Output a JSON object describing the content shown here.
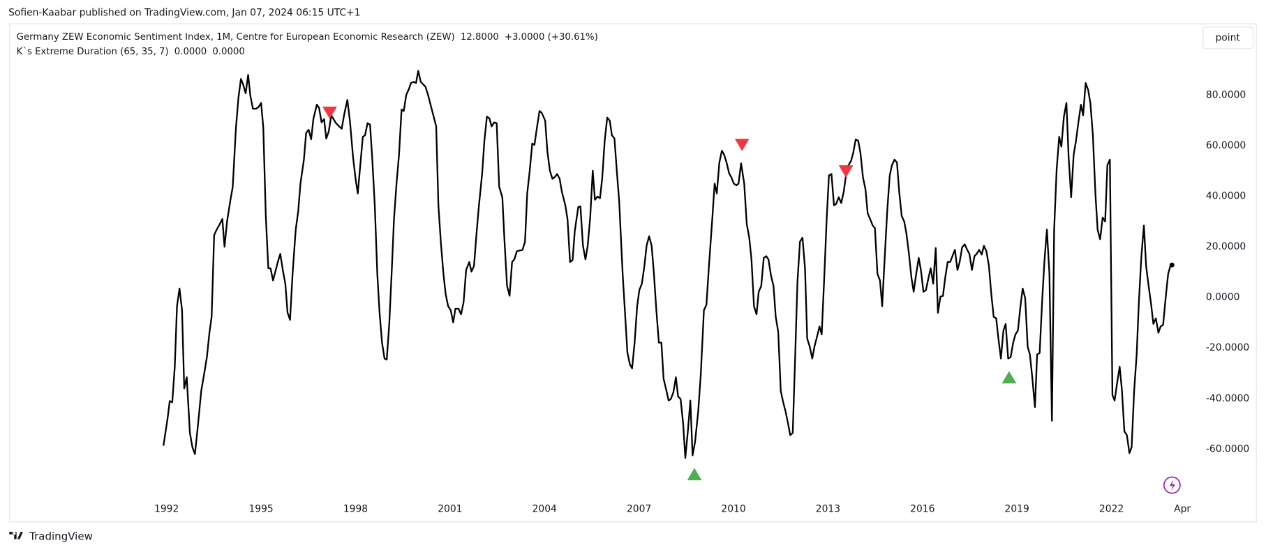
{
  "header": "Sofien-Kaabar published on TradingView.com, Jan 07, 2024 06:15 UTC+1",
  "footer": "TradingView",
  "button": "point",
  "chart_data": {
    "type": "line",
    "last_value": {
      "value": 12.8,
      "label": "12.8000"
    },
    "change": "+3.0000 (+30.61%)",
    "indicator": {
      "name": "K`s Extreme Duration (65, 35, 7)",
      "values": [
        {
          "value": 0,
          "label": "0.0000",
          "color": "#4caf50"
        },
        {
          "value": 0,
          "label": "0.0000",
          "color": "#f23645"
        }
      ]
    },
    "xlim": [
      1987.03,
      2024.64
    ],
    "ylim": [
      -78.4,
      108.05
    ],
    "xticks": [
      1992,
      1995,
      1998,
      2001,
      2004,
      2007,
      2010,
      2013,
      2016,
      2019,
      2022,
      {
        "value": 2024.25,
        "label": "Apr"
      }
    ],
    "yticks": [
      {
        "value": 80,
        "label": "80.0000"
      },
      {
        "value": 60,
        "label": "60.0000"
      },
      {
        "value": 40,
        "label": "40.0000"
      },
      {
        "value": 20,
        "label": "20.0000"
      },
      {
        "value": 0,
        "label": "0.0000"
      },
      {
        "value": -20,
        "label": "-20.0000"
      },
      {
        "value": -40,
        "label": "-40.0000"
      },
      {
        "value": -60,
        "label": "-60.0000"
      }
    ],
    "x": [
      1991.9,
      1992.03,
      1992.1,
      1992.18,
      1992.26,
      1992.33,
      1992.41,
      1992.49,
      1992.56,
      1992.64,
      1992.74,
      1992.82,
      1992.9,
      1993.0,
      1993.1,
      1993.2,
      1993.28,
      1993.36,
      1993.43,
      1993.51,
      1993.59,
      1993.69,
      1993.77,
      1993.84,
      1993.92,
      1994.02,
      1994.1,
      1994.2,
      1994.28,
      1994.36,
      1994.43,
      1994.51,
      1994.59,
      1994.66,
      1994.74,
      1994.84,
      1994.92,
      1995.0,
      1995.07,
      1995.15,
      1995.23,
      1995.3,
      1995.38,
      1995.46,
      1995.54,
      1995.61,
      1995.69,
      1995.77,
      1995.84,
      1995.92,
      1996.0,
      1996.1,
      1996.18,
      1996.25,
      1996.36,
      1996.43,
      1996.51,
      1996.59,
      1996.66,
      1996.77,
      1996.84,
      1996.92,
      1997.0,
      1997.07,
      1997.15,
      1997.23,
      1997.3,
      1997.38,
      1997.48,
      1997.56,
      1997.64,
      1997.74,
      1997.82,
      1997.92,
      1998.0,
      1998.07,
      1998.15,
      1998.23,
      1998.3,
      1998.38,
      1998.46,
      1998.53,
      1998.61,
      1998.69,
      1998.76,
      1998.84,
      1998.92,
      1998.99,
      1999.07,
      1999.15,
      1999.22,
      1999.3,
      1999.38,
      1999.46,
      1999.53,
      1999.61,
      1999.69,
      1999.76,
      1999.84,
      1999.92,
      1999.99,
      2000.07,
      2000.15,
      2000.22,
      2000.3,
      2000.4,
      2000.48,
      2000.56,
      2000.63,
      2000.71,
      2000.79,
      2000.86,
      2000.94,
      2001.02,
      2001.1,
      2001.17,
      2001.27,
      2001.35,
      2001.43,
      2001.51,
      2001.61,
      2001.68,
      2001.76,
      2001.84,
      2001.91,
      2002.02,
      2002.09,
      2002.17,
      2002.25,
      2002.32,
      2002.4,
      2002.48,
      2002.56,
      2002.66,
      2002.73,
      2002.81,
      2002.89,
      2002.97,
      2003.04,
      2003.12,
      2003.2,
      2003.3,
      2003.38,
      2003.45,
      2003.53,
      2003.61,
      2003.68,
      2003.76,
      2003.84,
      2003.91,
      2004.02,
      2004.09,
      2004.17,
      2004.25,
      2004.32,
      2004.4,
      2004.48,
      2004.55,
      2004.66,
      2004.73,
      2004.81,
      2004.89,
      2004.96,
      2005.07,
      2005.14,
      2005.22,
      2005.3,
      2005.37,
      2005.45,
      2005.53,
      2005.6,
      2005.68,
      2005.76,
      2005.83,
      2005.91,
      2005.99,
      2006.07,
      2006.14,
      2006.22,
      2006.3,
      2006.37,
      2006.48,
      2006.55,
      2006.63,
      2006.71,
      2006.78,
      2006.86,
      2006.94,
      2007.01,
      2007.09,
      2007.17,
      2007.24,
      2007.32,
      2007.4,
      2007.47,
      2007.55,
      2007.63,
      2007.71,
      2007.78,
      2007.86,
      2007.94,
      2008.01,
      2008.09,
      2008.17,
      2008.24,
      2008.32,
      2008.4,
      2008.47,
      2008.55,
      2008.63,
      2008.7,
      2008.78,
      2008.88,
      2008.96,
      2009.06,
      2009.14,
      2009.22,
      2009.32,
      2009.4,
      2009.47,
      2009.55,
      2009.63,
      2009.7,
      2009.78,
      2009.86,
      2009.93,
      2010.01,
      2010.09,
      2010.16,
      2010.24,
      2010.34,
      2010.42,
      2010.5,
      2010.57,
      2010.65,
      2010.73,
      2010.8,
      2010.88,
      2010.96,
      2011.04,
      2011.11,
      2011.19,
      2011.27,
      2011.34,
      2011.42,
      2011.5,
      2011.57,
      2011.65,
      2011.73,
      2011.8,
      2011.88,
      2011.96,
      2012.03,
      2012.11,
      2012.19,
      2012.27,
      2012.34,
      2012.42,
      2012.5,
      2012.57,
      2012.65,
      2012.73,
      2012.8,
      2012.88,
      2012.96,
      2013.03,
      2013.11,
      2013.19,
      2013.26,
      2013.34,
      2013.42,
      2013.5,
      2013.57,
      2013.65,
      2013.73,
      2013.8,
      2013.88,
      2013.96,
      2014.03,
      2014.11,
      2014.19,
      2014.26,
      2014.34,
      2014.42,
      2014.49,
      2014.57,
      2014.65,
      2014.72,
      2014.8,
      2014.88,
      2014.96,
      2015.03,
      2015.11,
      2015.19,
      2015.26,
      2015.34,
      2015.42,
      2015.49,
      2015.57,
      2015.65,
      2015.72,
      2015.8,
      2015.88,
      2015.95,
      2016.03,
      2016.11,
      2016.19,
      2016.26,
      2016.34,
      2016.42,
      2016.49,
      2016.57,
      2016.65,
      2016.72,
      2016.8,
      2016.88,
      2016.95,
      2017.03,
      2017.11,
      2017.18,
      2017.26,
      2017.34,
      2017.42,
      2017.49,
      2017.57,
      2017.65,
      2017.72,
      2017.8,
      2017.88,
      2017.95,
      2018.03,
      2018.11,
      2018.18,
      2018.26,
      2018.34,
      2018.41,
      2018.49,
      2018.57,
      2018.64,
      2018.72,
      2018.8,
      2018.88,
      2018.95,
      2019.03,
      2019.11,
      2019.18,
      2019.26,
      2019.34,
      2019.41,
      2019.49,
      2019.57,
      2019.64,
      2019.72,
      2019.8,
      2019.87,
      2019.95,
      2020.03,
      2020.11,
      2020.18,
      2020.26,
      2020.34,
      2020.41,
      2020.49,
      2020.57,
      2020.64,
      2020.72,
      2020.8,
      2020.87,
      2020.95,
      2021.03,
      2021.1,
      2021.18,
      2021.26,
      2021.33,
      2021.41,
      2021.49,
      2021.56,
      2021.64,
      2021.72,
      2021.8,
      2021.87,
      2021.95,
      2022.03,
      2022.1,
      2022.18,
      2022.26,
      2022.33,
      2022.41,
      2022.49,
      2022.57,
      2022.64,
      2022.72,
      2022.8,
      2022.87,
      2022.95,
      2023.03,
      2023.1,
      2023.18,
      2023.26,
      2023.33,
      2023.41,
      2023.49,
      2023.56,
      2023.64,
      2023.72,
      2023.8,
      2023.87,
      2023.92
    ],
    "series": [
      {
        "name": "Germany ZEW Economic Sentiment Index, 1M, Centre for European Economic Research (ZEW)",
        "color": "#000000",
        "values": [
          -58.7,
          -48,
          -41,
          -41.5,
          -27.4,
          -3.5,
          3.5,
          -5,
          -36,
          -31.6,
          -53.6,
          -59.3,
          -62,
          -50,
          -37,
          -29.7,
          -23.6,
          -14,
          -7.7,
          24.6,
          26.8,
          29,
          31,
          20,
          30,
          38,
          43.7,
          66.7,
          78.8,
          86.4,
          84.2,
          80.7,
          88,
          79.7,
          74.6,
          74.6,
          75.3,
          76.9,
          67.3,
          32.2,
          11.5,
          11.5,
          6.7,
          10.5,
          14.4,
          17.2,
          10.8,
          5.4,
          -6,
          -8.9,
          9.3,
          26.8,
          34.1,
          45,
          54.5,
          65,
          66.3,
          62.5,
          70.5,
          76.2,
          75,
          69.2,
          70.5,
          62.8,
          65.7,
          72,
          70.5,
          68.9,
          67.6,
          66.7,
          72.4,
          78.1,
          69.9,
          55.5,
          46.9,
          41.1,
          52.3,
          63.5,
          64.1,
          68.9,
          68.3,
          54.9,
          36.4,
          9.3,
          -5.7,
          -17.9,
          -24.2,
          -24.6,
          -10.5,
          10.8,
          30.9,
          45,
          56.5,
          74.3,
          73.7,
          80.1,
          82.3,
          84.8,
          85.2,
          84.8,
          89.6,
          85.2,
          84.2,
          83.3,
          80.1,
          75.3,
          71.5,
          67.6,
          36.4,
          21.4,
          9.3,
          1.3,
          -3.5,
          -5.1,
          -9.9,
          -4.5,
          -4.5,
          -6.7,
          -1.9,
          10.8,
          14,
          10.2,
          12.4,
          25.2,
          35.4,
          49.1,
          61.9,
          71.5,
          70.8,
          67.6,
          69.2,
          68.9,
          43.7,
          39.6,
          22,
          4.5,
          0.6,
          14,
          15,
          18.2,
          18.5,
          18.8,
          22,
          41.1,
          50.1,
          60.9,
          60.3,
          67.3,
          73.7,
          73,
          69.9,
          57.7,
          50.1,
          46.9,
          47.5,
          48.8,
          46.9,
          41.8,
          36.4,
          30.9,
          14,
          14.7,
          26.2,
          35.7,
          36,
          20.4,
          15,
          20.4,
          31.6,
          50.1,
          38.6,
          39.9,
          39.2,
          46.9,
          61.9,
          71.1,
          69.9,
          64.1,
          62.8,
          49.1,
          38,
          9.3,
          -5.1,
          -21.7,
          -26.5,
          -28.1,
          -17.9,
          -3.5,
          2.9,
          5.4,
          12.4,
          20.4,
          24.2,
          20.4,
          9.9,
          -5.1,
          -17.9,
          -17.9,
          -32.2,
          -36.4,
          -40.8,
          -40.2,
          -37.6,
          -31.6,
          -39.2,
          -40.2,
          -49.8,
          -63.5,
          -53,
          -40.8,
          -62.5,
          -57.1,
          -45,
          -30.6,
          -5.1,
          -2.9,
          12.4,
          30,
          45,
          41.1,
          53.3,
          58,
          56.5,
          53.3,
          49.1,
          47.5,
          45,
          44.3,
          45,
          53,
          45,
          29,
          23.6,
          15,
          -3.5,
          -6.7,
          2.2,
          4.5,
          15.6,
          16.3,
          15,
          8.6,
          4.5,
          -7.7,
          -13.7,
          -37,
          -41.1,
          -45,
          -49.8,
          -54.5,
          -53.6,
          -22.6,
          6.1,
          22,
          23.6,
          11.5,
          -16.3,
          -19.5,
          -24.2,
          -19.5,
          -15.6,
          -11.5,
          -14.7,
          7.7,
          31.6,
          48.2,
          48.8,
          36.4,
          37,
          39.6,
          37.3,
          41.8,
          48.2,
          52.3,
          53.9,
          57.1,
          62.5,
          61.9,
          57.1,
          47.5,
          42.7,
          33.2,
          30.9,
          28.4,
          27.4,
          9.3,
          6.7,
          -3.5,
          15.6,
          34.1,
          48.2,
          52.3,
          54.5,
          53.3,
          41.8,
          32.2,
          30,
          25.2,
          17.2,
          7.7,
          2.2,
          9.3,
          15.6,
          10.8,
          2.2,
          2.9,
          7.7,
          11.5,
          5.4,
          19.5,
          -6.1,
          0.3,
          0.6,
          7.7,
          14,
          14,
          16.3,
          18.8,
          10.8,
          14,
          19.8,
          21,
          18.8,
          17.2,
          10.8,
          16.3,
          17.2,
          18.8,
          16.9,
          20.4,
          18.2,
          12.4,
          1.9,
          -7.7,
          -8.3,
          -16.3,
          -24.2,
          -13.1,
          -10.5,
          -24.2,
          -23.6,
          -17.9,
          -14.7,
          -13.1,
          -3.5,
          3.5,
          -0.3,
          -19.5,
          -22.6,
          -32.2,
          -43.4,
          -22.6,
          -22,
          -1.3,
          14,
          26.8,
          9.3,
          -48.8,
          26.8,
          50.7,
          63.5,
          59.6,
          71.5,
          76.9,
          55.5,
          39.6,
          56.5,
          61.6,
          69.2,
          76.2,
          72,
          84.8,
          82,
          76.9,
          64.1,
          41.1,
          26.8,
          23,
          31.6,
          30,
          52.3,
          54.5,
          -38.6,
          -40.8,
          -33.8,
          -27.4,
          -36.4,
          -53,
          -54.5,
          -61.6,
          -59.3,
          -37,
          -22.6,
          -1.9,
          16.3,
          28.4,
          12.4,
          4.5,
          -2.9,
          -10.5,
          -8.3,
          -14,
          -11.5,
          -10.9,
          -0.3,
          9.3,
          12.4,
          12.8
        ]
      }
    ],
    "markers": [
      {
        "x": 1997.18,
        "y": 73,
        "shape": "down",
        "color": "#f23645"
      },
      {
        "x": 2010.27,
        "y": 60.3,
        "shape": "down",
        "color": "#f23645"
      },
      {
        "x": 2013.57,
        "y": 49.8,
        "shape": "down",
        "color": "#f23645"
      },
      {
        "x": 2008.76,
        "y": -69.9,
        "shape": "up",
        "color": "#4caf50"
      },
      {
        "x": 2018.75,
        "y": -31.6,
        "shape": "up",
        "color": "#4caf50"
      }
    ]
  }
}
